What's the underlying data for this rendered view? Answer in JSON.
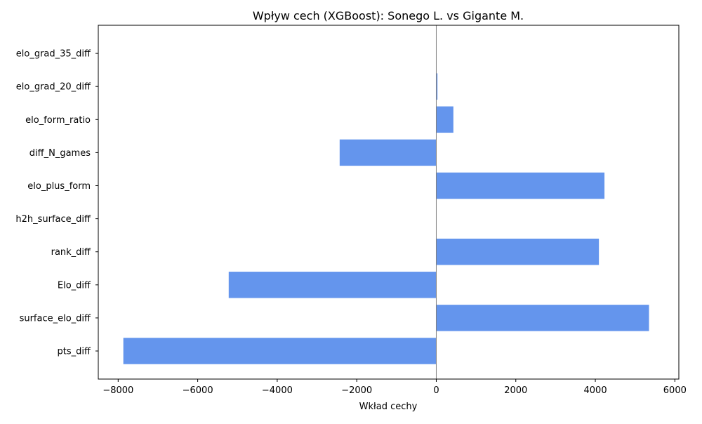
{
  "chart_data": {
    "type": "bar",
    "orientation": "horizontal",
    "title": "Wpływ cech (XGBoost): Sonego L. vs Gigante M.",
    "xlabel": "Wkład cechy",
    "ylabel": "",
    "xlim": [
      -8500,
      6100
    ],
    "xticks": [
      -8000,
      -6000,
      -4000,
      -2000,
      0,
      2000,
      4000,
      6000
    ],
    "xtick_labels": [
      "−8000",
      "−6000",
      "−4000",
      "−2000",
      "0",
      "2000",
      "4000",
      "6000"
    ],
    "categories": [
      "pts_diff",
      "surface_elo_diff",
      "Elo_diff",
      "rank_diff",
      "h2h_surface_diff",
      "elo_plus_form",
      "diff_N_games",
      "elo_form_ratio",
      "elo_grad_20_diff",
      "elo_grad_35_diff"
    ],
    "values": [
      -7870,
      5350,
      -5220,
      4090,
      0,
      4230,
      -2430,
      430,
      30,
      0
    ],
    "bar_color": "#6495ED",
    "zero_line_color": "#808080",
    "grid": false,
    "legend": "none"
  }
}
